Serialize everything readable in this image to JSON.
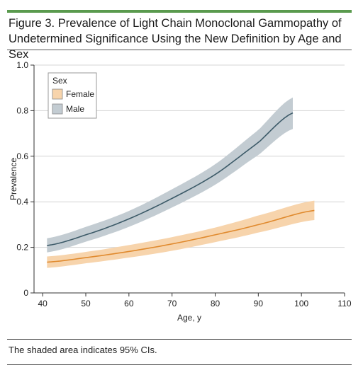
{
  "figure": {
    "title": "Figure 3. Prevalence of Light Chain Monoclonal Gammopathy of Undetermined Significance Using the New Definition by Age and Sex",
    "footnote": "The shaded area indicates 95% CIs."
  },
  "colors": {
    "female_line": "#e08a2e",
    "female_band": "#f7d4ac",
    "male_line": "#3c5a68",
    "male_band": "#c3ccd2",
    "accent_rule": "#5a9a4e"
  },
  "chart_data": {
    "type": "line",
    "xlabel": "Age, y",
    "ylabel": "Prevalence",
    "xlim": [
      38,
      110
    ],
    "ylim": [
      0,
      1.0
    ],
    "xticks": [
      40,
      50,
      60,
      70,
      80,
      90,
      100,
      110
    ],
    "yticks": [
      0,
      0.2,
      0.4,
      0.6,
      0.8,
      1.0
    ],
    "ytick_labels": [
      "0",
      "0.2",
      "0.4",
      "0.6",
      "0.8",
      "1.0"
    ],
    "grid": "horizontal",
    "legend": {
      "title": "Sex",
      "placement": "top-left"
    },
    "series": [
      {
        "name": "Female",
        "x": [
          41,
          50,
          60,
          70,
          80,
          90,
          103
        ],
        "y": [
          0.135,
          0.155,
          0.182,
          0.215,
          0.255,
          0.3,
          0.362
        ],
        "lower": [
          0.11,
          0.13,
          0.155,
          0.185,
          0.223,
          0.265,
          0.32
        ],
        "upper": [
          0.16,
          0.18,
          0.21,
          0.245,
          0.287,
          0.34,
          0.405
        ]
      },
      {
        "name": "Male",
        "x": [
          41,
          50,
          60,
          70,
          80,
          90,
          98
        ],
        "y": [
          0.208,
          0.255,
          0.325,
          0.415,
          0.52,
          0.66,
          0.79
        ],
        "lower": [
          0.178,
          0.225,
          0.29,
          0.375,
          0.475,
          0.605,
          0.72
        ],
        "upper": [
          0.24,
          0.29,
          0.36,
          0.455,
          0.565,
          0.715,
          0.858
        ]
      }
    ]
  }
}
